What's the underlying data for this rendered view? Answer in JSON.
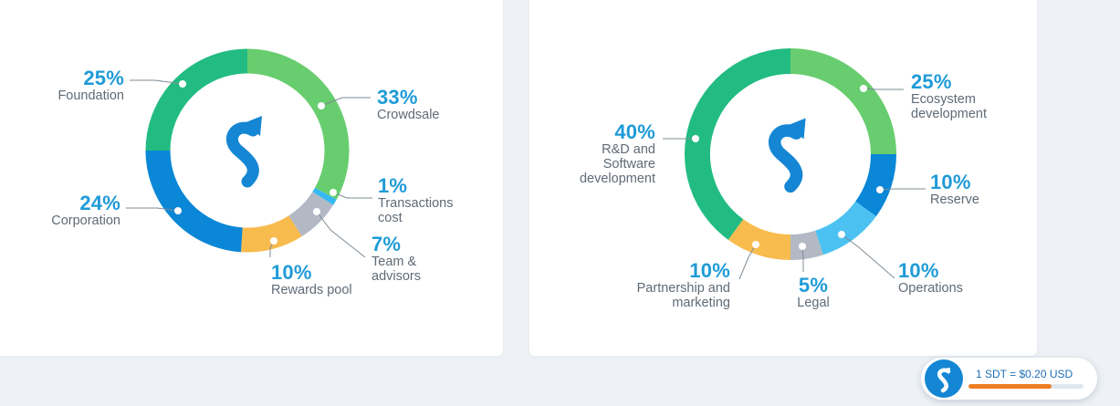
{
  "chart_data": [
    {
      "type": "pie",
      "slices": [
        {
          "percent": "33%",
          "label": "Crowdsale",
          "value": 33,
          "color": "#68cd6f"
        },
        {
          "percent": "1%",
          "label": "Transactions\ncost",
          "value": 1,
          "color": "#35b9f2"
        },
        {
          "percent": "7%",
          "label": "Team &\nadvisors",
          "value": 7,
          "color": "#b2b9c4"
        },
        {
          "percent": "10%",
          "label": "Rewards pool",
          "value": 10,
          "color": "#f8bb4d"
        },
        {
          "percent": "24%",
          "label": "Corporation",
          "value": 24,
          "color": "#0a87d6"
        },
        {
          "percent": "25%",
          "label": "Foundation",
          "value": 25,
          "color": "#22bc83"
        }
      ]
    },
    {
      "type": "pie",
      "slices": [
        {
          "percent": "25%",
          "label": "Ecosystem\ndevelopment",
          "value": 25,
          "color": "#68cd6f"
        },
        {
          "percent": "10%",
          "label": "Reserve",
          "value": 10,
          "color": "#0a87d6"
        },
        {
          "percent": "10%",
          "label": "Operations",
          "value": 10,
          "color": "#4cc2f2"
        },
        {
          "percent": "5%",
          "label": "Legal",
          "value": 5,
          "color": "#b2b9c4"
        },
        {
          "percent": "10%",
          "label": "Partnership and\nmarketing",
          "value": 10,
          "color": "#f8bb4d"
        },
        {
          "percent": "40%",
          "label": "R&D and\nSoftware\ndevelopment",
          "value": 40,
          "color": "#22bc83"
        }
      ]
    }
  ],
  "logo_icon": "s-arrow-logo-icon",
  "price_widget": {
    "text": "1 SDT = $0.20 USD",
    "progress": 0.72,
    "colors": {
      "fill": "#ef7d22",
      "track": "#dfe7ee"
    }
  }
}
